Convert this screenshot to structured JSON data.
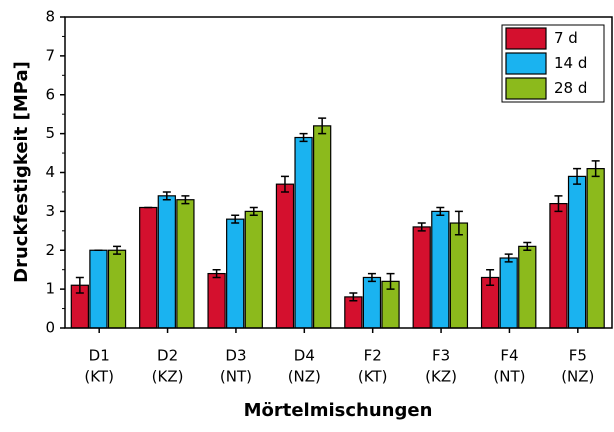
{
  "chart_data": {
    "type": "bar",
    "ylabel": "Druckfestigkeit [MPa]",
    "xlabel": "Mörtelmischungen",
    "categories": [
      [
        "D1",
        "(KT)"
      ],
      [
        "D2",
        "(KZ)"
      ],
      [
        "D3",
        "(NT)"
      ],
      [
        "D4",
        "(NZ)"
      ],
      [
        "F2",
        "(KT)"
      ],
      [
        "F3",
        "(KZ)"
      ],
      [
        "F4",
        "(NT)"
      ],
      [
        "F5",
        "(NZ)"
      ]
    ],
    "series": [
      {
        "name": "7 d",
        "color": "#d4102e",
        "values": [
          1.1,
          3.1,
          1.4,
          3.7,
          0.8,
          2.6,
          1.3,
          3.2
        ],
        "errors": [
          0.2,
          0,
          0.1,
          0.2,
          0.1,
          0.1,
          0.2,
          0.2
        ]
      },
      {
        "name": "14 d",
        "color": "#1ab3f0",
        "values": [
          2.0,
          3.4,
          2.8,
          4.9,
          1.3,
          3.0,
          1.8,
          3.9
        ],
        "errors": [
          0,
          0.1,
          0.1,
          0.1,
          0.1,
          0.1,
          0.1,
          0.2
        ]
      },
      {
        "name": "28 d",
        "color": "#8cba1c",
        "values": [
          2.0,
          3.3,
          3.0,
          5.2,
          1.2,
          2.7,
          2.1,
          4.1
        ],
        "errors": [
          0.1,
          0.1,
          0.1,
          0.2,
          0.2,
          0.3,
          0.1,
          0.2
        ]
      }
    ],
    "ylim": [
      0,
      8
    ],
    "yticks": [
      0,
      1,
      2,
      3,
      4,
      5,
      6,
      7,
      8
    ],
    "legend": "upper right"
  }
}
